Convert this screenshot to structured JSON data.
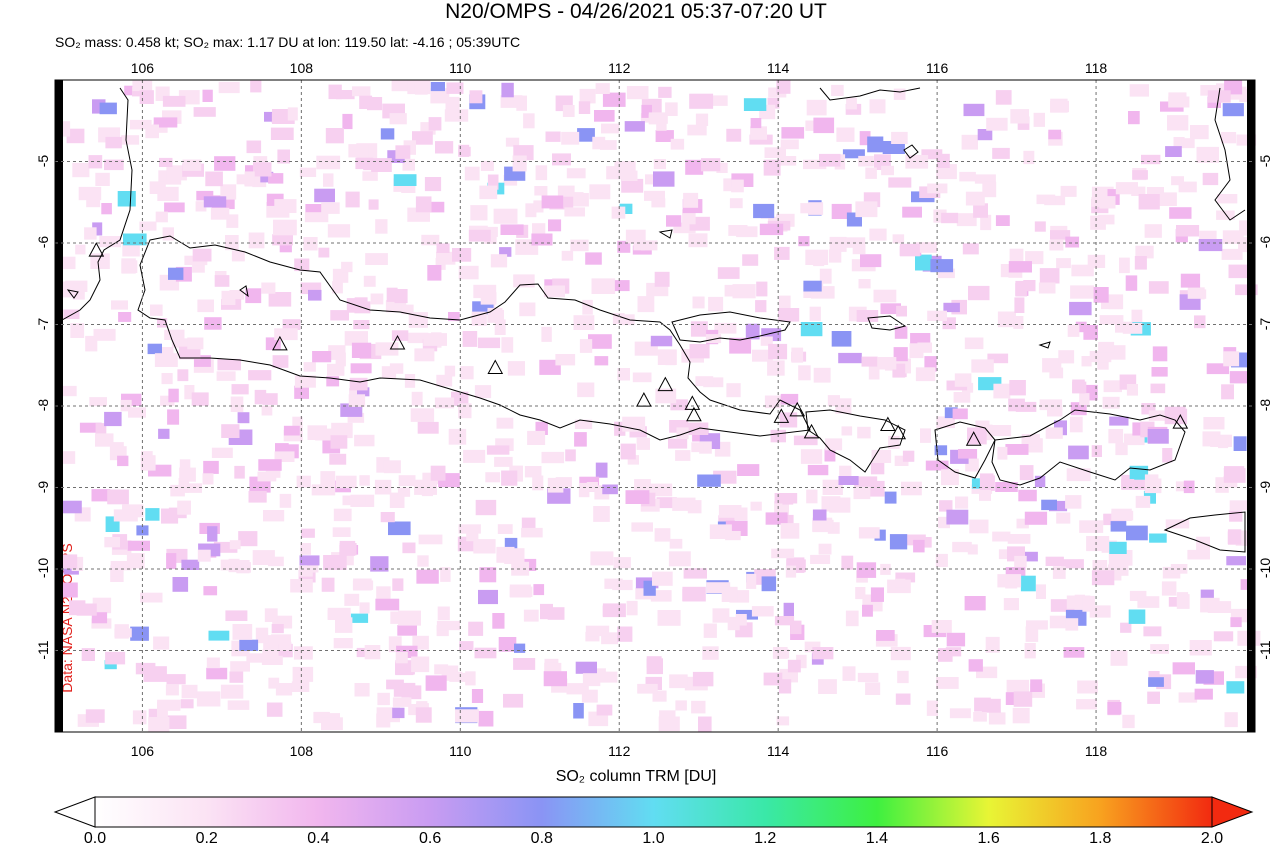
{
  "title": "N20/OMPS - 04/26/2021 05:37-07:20 UT",
  "subtitle": "SO₂ mass: 0.458 kt; SO₂ max: 1.17 DU at lon: 119.50 lat: -4.16 ; 05:39UTC",
  "credit": "Data: NASA N20/OMPS",
  "colorbar": {
    "title": "SO₂ column TRM [DU]",
    "labels": [
      "0.0",
      "0.2",
      "0.4",
      "0.6",
      "0.8",
      "1.0",
      "1.2",
      "1.4",
      "1.6",
      "1.8",
      "2.0"
    ],
    "colors": [
      "#ffffff",
      "#fbe3f4",
      "#f1b6ee",
      "#c99cf2",
      "#8a94f4",
      "#61ddf2",
      "#3ae8a8",
      "#3ef040",
      "#e8f535",
      "#f8a21f",
      "#f22a10"
    ]
  },
  "map": {
    "lon_ticks": [
      "106",
      "108",
      "110",
      "112",
      "114",
      "116",
      "118"
    ],
    "lat_ticks": [
      "-5",
      "-6",
      "-7",
      "-8",
      "-9",
      "-10",
      "-11"
    ],
    "lon_range": [
      104.9,
      120.0
    ],
    "lat_range": [
      -12.0,
      -4.0
    ],
    "volcanoes": [
      [
        105.42,
        -6.1
      ],
      [
        107.73,
        -7.25
      ],
      [
        109.21,
        -7.24
      ],
      [
        110.44,
        -7.54
      ],
      [
        112.31,
        -7.94
      ],
      [
        112.58,
        -7.75
      ],
      [
        112.92,
        -7.98
      ],
      [
        112.94,
        -8.12
      ],
      [
        114.04,
        -8.14
      ],
      [
        114.24,
        -8.06
      ],
      [
        114.42,
        -8.33
      ],
      [
        115.38,
        -8.24
      ],
      [
        115.51,
        -8.34
      ],
      [
        116.46,
        -8.42
      ],
      [
        119.06,
        -8.21
      ]
    ]
  }
}
